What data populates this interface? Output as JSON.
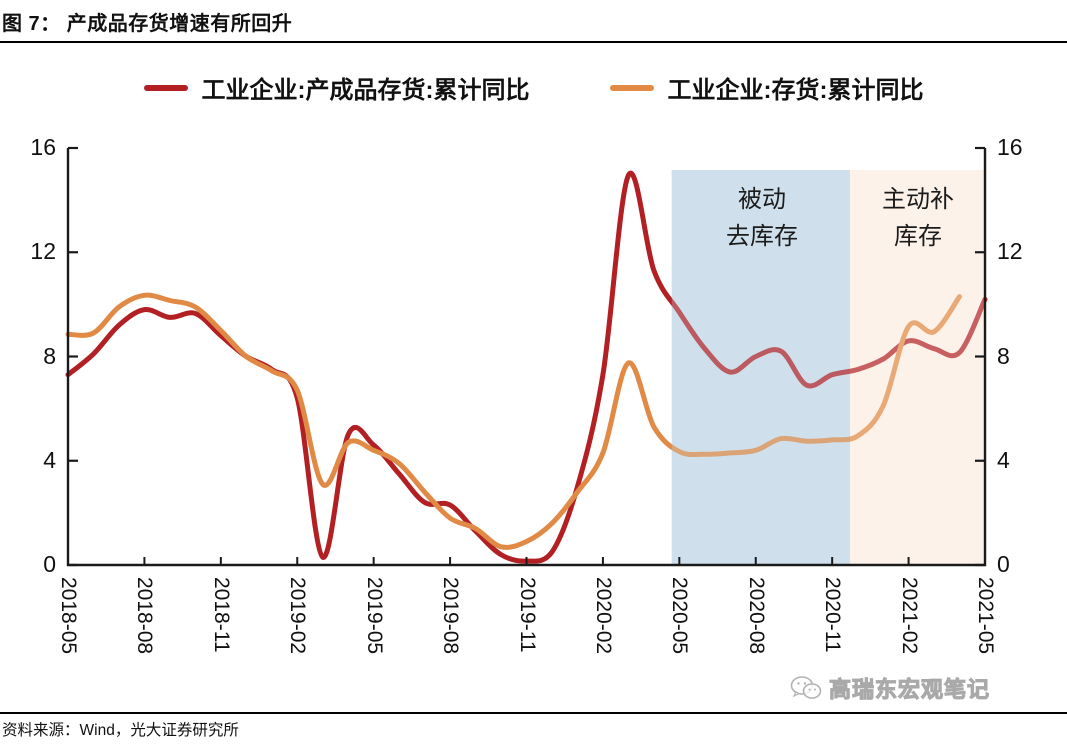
{
  "title": "图 7：  产成品存货增速有所回升",
  "footer": {
    "source": "资料来源：Wind，光大证券研究所"
  },
  "watermark": {
    "icon": "wechat-icon",
    "text": "高瑞东宏观笔记"
  },
  "chart_data": {
    "type": "line",
    "title": "产成品存货增速有所回升",
    "x_start": "2018-05",
    "x_step": "1 month",
    "x_tick_labels": [
      "2018-05",
      "2018-08",
      "2018-11",
      "2019-02",
      "2019-05",
      "2019-08",
      "2019-11",
      "2020-02",
      "2020-05",
      "2020-08",
      "2020-11",
      "2021-02",
      "2021-05"
    ],
    "y_ticks": [
      16,
      12,
      8,
      4,
      0
    ],
    "ylim": [
      0,
      16
    ],
    "grid": false,
    "legend_position": "top-center",
    "series": [
      {
        "name": "工业企业:产成品存货:累计同比",
        "color": "#b22024",
        "start": "2018-05",
        "end": "2021-05",
        "values": [
          7.3,
          8.1,
          9.2,
          9.8,
          9.5,
          9.65,
          8.8,
          8.0,
          7.5,
          6.4,
          0.3,
          5.0,
          4.6,
          3.5,
          2.4,
          2.3,
          1.3,
          0.4,
          0.15,
          0.5,
          3.0,
          7.3,
          14.95,
          11.3,
          9.7,
          8.3,
          7.4,
          8.0,
          8.2,
          6.9,
          7.3,
          7.5,
          7.9,
          8.6,
          8.3,
          8.15,
          10.2
        ]
      },
      {
        "name": "工业企业:存货:累计同比",
        "color": "#e08a45",
        "start": "2018-05",
        "end": "2021-04",
        "values": [
          8.85,
          8.9,
          9.9,
          10.35,
          10.15,
          9.9,
          9.0,
          8.0,
          7.45,
          6.7,
          3.1,
          4.7,
          4.4,
          3.9,
          2.8,
          1.8,
          1.4,
          0.7,
          0.9,
          1.6,
          2.8,
          4.3,
          7.75,
          5.3,
          4.35,
          4.25,
          4.3,
          4.4,
          4.85,
          4.75,
          4.8,
          4.95,
          6.1,
          9.15,
          8.95,
          10.3
        ]
      }
    ],
    "regions": [
      {
        "label": "被动去库存",
        "label_lines": [
          "被动",
          "去库存"
        ],
        "from_month_index": 23.7,
        "to_month_index": 30.7,
        "approx_range": "2020-04 to 2020-12",
        "color": "#cfe0ec"
      },
      {
        "label": "主动补库存",
        "label_lines": [
          "主动补",
          "库存"
        ],
        "from_month_index": 30.7,
        "to_month_index": 36,
        "approx_range": "2020-12 to 2021-05",
        "color": "#fcf2ea"
      }
    ]
  }
}
